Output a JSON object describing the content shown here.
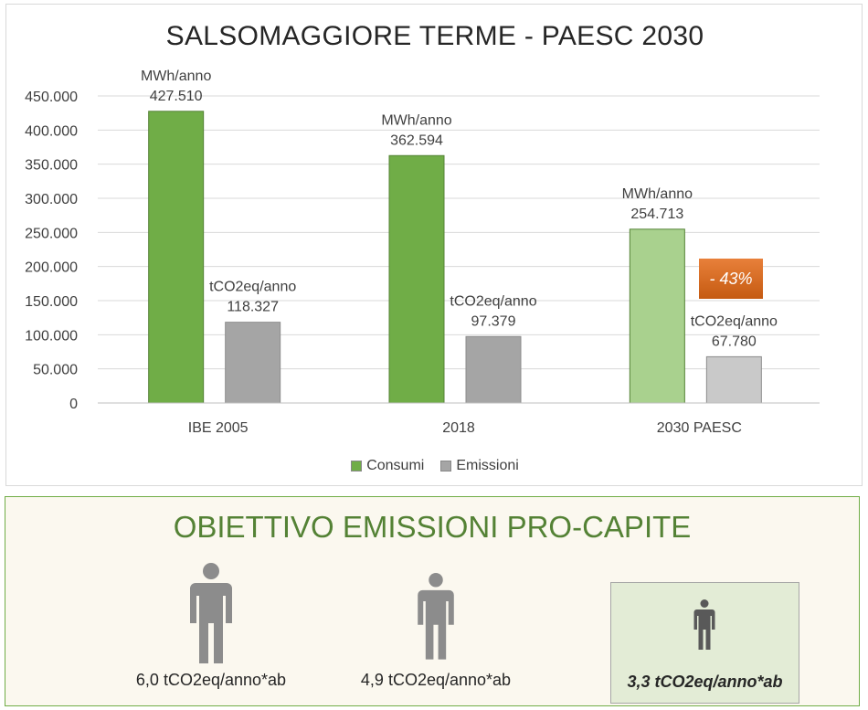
{
  "chart_data": {
    "type": "bar",
    "title": "SALSOMAGGIORE TERME - PAESC 2030",
    "categories": [
      "IBE 2005",
      "2018",
      "2030 PAESC"
    ],
    "series": [
      {
        "name": "Consumi",
        "values": [
          427510,
          362594,
          254713
        ],
        "unit_label": "MWh/anno",
        "data_labels": [
          "427.510",
          "362.594",
          "254.713"
        ]
      },
      {
        "name": "Emissioni",
        "values": [
          118327,
          97379,
          67780
        ],
        "unit_label": "tCO2eq/anno",
        "data_labels": [
          "118.327",
          "97.379",
          "67.780"
        ]
      }
    ],
    "ylim": [
      0,
      450000
    ],
    "yticks": [
      "0",
      "50.000",
      "100.000",
      "150.000",
      "200.000",
      "250.000",
      "300.000",
      "350.000",
      "400.000",
      "450.000"
    ],
    "grid": true,
    "legend_position": "bottom",
    "annotation": "- 43%",
    "colors": {
      "consumi": "#70ad47",
      "consumi_light": "#a9d18e",
      "emissioni": "#a5a5a5",
      "emissioni_light": "#c9c9c9",
      "annotation": "#c55a11"
    }
  },
  "objective": {
    "title": "OBIETTIVO EMISSIONI PRO-CAPITE",
    "items": [
      {
        "label": "6,0 tCO2eq/anno*ab",
        "icon": "person-icon",
        "level": 1.0
      },
      {
        "label": "4,9 tCO2eq/anno*ab",
        "icon": "person-icon",
        "level": 0.82
      },
      {
        "label": "3,3 tCO2eq/anno*ab",
        "icon": "person-icon",
        "level": 0.55,
        "highlighted": true
      }
    ]
  }
}
